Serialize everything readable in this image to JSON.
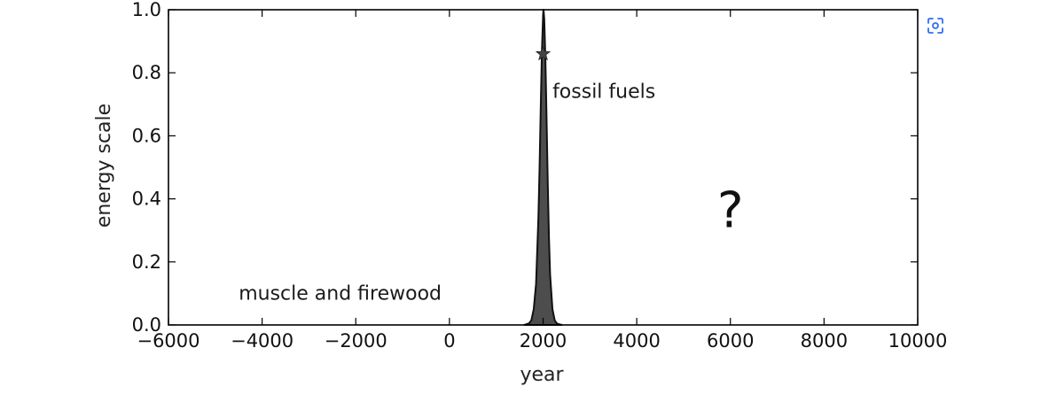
{
  "chart_data": {
    "type": "area",
    "xlabel": "year",
    "ylabel": "energy scale",
    "xlim": [
      -6000,
      10000
    ],
    "ylim": [
      0,
      1.0
    ],
    "x_ticks": [
      -6000,
      -4000,
      -2000,
      0,
      2000,
      4000,
      6000,
      8000,
      10000
    ],
    "x_tick_labels": [
      "−6000",
      "−4000",
      "−2000",
      "0",
      "2000",
      "4000",
      "6000",
      "8000",
      "10000"
    ],
    "y_ticks": [
      0.0,
      0.2,
      0.4,
      0.6,
      0.8,
      1.0
    ],
    "y_tick_labels": [
      "0.0",
      "0.2",
      "0.4",
      "0.6",
      "0.8",
      "1.0"
    ],
    "grid": false,
    "series": [
      {
        "color": "#4d4d4d",
        "x": [
          1600,
          1700,
          1750,
          1800,
          1850,
          1900,
          1925,
          1950,
          1975,
          2000,
          2010,
          2025,
          2050,
          2075,
          2100,
          2125,
          2150,
          2200,
          2250,
          2300,
          2400
        ],
        "y": [
          0.0,
          0.005,
          0.015,
          0.05,
          0.13,
          0.34,
          0.5,
          0.69,
          0.87,
          0.98,
          1.0,
          0.97,
          0.84,
          0.65,
          0.45,
          0.28,
          0.16,
          0.05,
          0.014,
          0.004,
          0.0
        ]
      }
    ],
    "marker": {
      "symbol": "star",
      "x": 2000,
      "y": 0.86,
      "color": "#444444"
    },
    "annotations": [
      {
        "text": "fossil fuels",
        "x": 2200,
        "y": 0.72
      },
      {
        "text": "?",
        "x": 6000,
        "y": 0.31
      },
      {
        "text": "muscle and firewood",
        "x": -4500,
        "y": 0.08
      }
    ]
  },
  "scan_icon": "scan-camera-icon"
}
